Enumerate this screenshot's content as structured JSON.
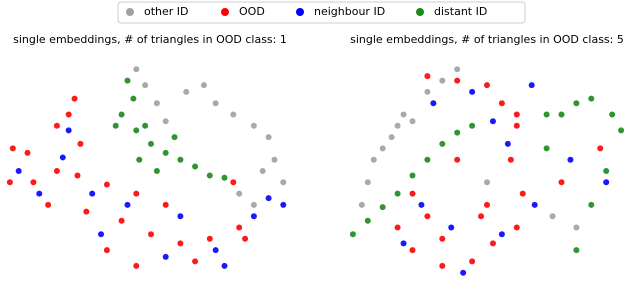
{
  "chart_data": [
    {
      "type": "scatter",
      "title": "single embeddings, # of triangles in OOD class: 1",
      "xlim": [
        0,
        100
      ],
      "ylim": [
        0,
        100
      ],
      "series": [
        {
          "name": "other ID",
          "color": "#a0a0a0",
          "x": [
            45,
            48,
            52,
            55,
            62,
            68,
            72,
            78,
            85,
            90,
            92,
            88,
            95,
            80,
            85
          ],
          "values": [
            95,
            88,
            80,
            72,
            85,
            88,
            80,
            75,
            70,
            65,
            55,
            50,
            45,
            40,
            35
          ]
        },
        {
          "name": "OOD",
          "color": "#ff0000",
          "x": [
            3,
            8,
            2,
            10,
            18,
            25,
            35,
            45,
            55,
            15,
            28,
            40,
            50,
            60,
            70,
            80,
            22,
            24,
            18,
            26,
            65,
            35,
            45,
            78,
            82
          ],
          "values": [
            60,
            58,
            45,
            45,
            50,
            48,
            44,
            40,
            35,
            35,
            32,
            28,
            22,
            18,
            20,
            25,
            75,
            82,
            70,
            62,
            10,
            15,
            8,
            45,
            20
          ]
        },
        {
          "name": "neighbour ID",
          "color": "#0000ff",
          "x": [
            5,
            12,
            30,
            42,
            60,
            72,
            85,
            90,
            20,
            33,
            55,
            75,
            22,
            95
          ],
          "values": [
            50,
            40,
            40,
            35,
            30,
            15,
            30,
            38,
            56,
            22,
            12,
            8,
            68,
            35
          ]
        },
        {
          "name": "distant ID",
          "color": "#1a8a1a",
          "x": [
            42,
            44,
            40,
            45,
            50,
            55,
            60,
            65,
            70,
            75,
            48,
            52,
            38,
            58,
            46
          ],
          "values": [
            90,
            82,
            75,
            68,
            62,
            58,
            55,
            52,
            48,
            47,
            70,
            50,
            70,
            65,
            55
          ]
        }
      ]
    },
    {
      "type": "scatter",
      "title": "single embeddings, # of triangles in OOD class: 5",
      "xlim": [
        0,
        100
      ],
      "ylim": [
        0,
        100
      ],
      "series": [
        {
          "name": "other ID",
          "color": "#a0a0a0",
          "x": [
            8,
            10,
            12,
            15,
            18,
            20,
            22,
            25,
            30,
            35,
            40,
            72,
            80,
            50
          ],
          "values": [
            35,
            45,
            55,
            60,
            65,
            70,
            75,
            72,
            85,
            90,
            95,
            30,
            25,
            45
          ]
        },
        {
          "name": "OOD",
          "color": "#ff0000",
          "x": [
            30,
            40,
            50,
            55,
            60,
            58,
            60,
            25,
            30,
            20,
            25,
            35,
            45,
            48,
            52,
            60,
            62,
            75,
            88,
            40,
            50,
            35
          ],
          "values": [
            92,
            90,
            88,
            80,
            70,
            55,
            75,
            40,
            30,
            25,
            15,
            20,
            10,
            30,
            18,
            25,
            40,
            45,
            60,
            55,
            35,
            8
          ]
        },
        {
          "name": "neighbour ID",
          "color": "#0000ff",
          "x": [
            45,
            52,
            57,
            28,
            22,
            38,
            55,
            66,
            78,
            90,
            42,
            32,
            65
          ],
          "values": [
            85,
            72,
            62,
            35,
            18,
            25,
            22,
            35,
            55,
            45,
            5,
            80,
            88
          ]
        },
        {
          "name": "distant ID",
          "color": "#1a8a1a",
          "x": [
            5,
            10,
            15,
            20,
            25,
            30,
            35,
            40,
            45,
            70,
            75,
            80,
            85,
            92,
            95,
            90,
            85,
            80,
            70
          ],
          "values": [
            22,
            28,
            34,
            40,
            48,
            55,
            62,
            67,
            70,
            60,
            75,
            80,
            82,
            75,
            68,
            50,
            35,
            15,
            75
          ]
        }
      ]
    }
  ]
}
